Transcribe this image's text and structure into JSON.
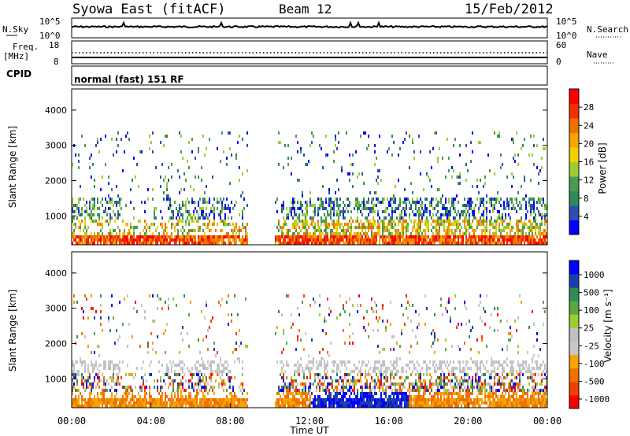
{
  "header": {
    "station": "Syowa East (fitACF)",
    "beam": "Beam 12",
    "date": "15/Feb/2012"
  },
  "noise_panel": {
    "left_label": "N.Sky",
    "right_label": "N.Search",
    "ticks_left": [
      "10^5",
      "10^0"
    ],
    "ticks_right": [
      "10^5",
      "10^0"
    ]
  },
  "freq_panel": {
    "left_label_1": "Freq.",
    "left_label_2": "[MHz]",
    "right_label": "Nave",
    "ticks_left": [
      "18",
      "8"
    ],
    "ticks_right": [
      "60",
      "0"
    ]
  },
  "cpid": {
    "label": "CPID",
    "value": "normal (fast) 151 RF"
  },
  "colors": {
    "power_scale": [
      "#0000ff",
      "#2a4fb0",
      "#2e8b57",
      "#4a9a50",
      "#9acd32",
      "#f0d000",
      "#f4a300",
      "#f07000",
      "#f03000",
      "#ff0000"
    ],
    "velocity_scale": [
      "#0000ff",
      "#1a3faa",
      "#2e8b57",
      "#5aa840",
      "#9acd32",
      "#c0c0c0",
      "#c8c8c8",
      "#f4a300",
      "#f07000",
      "#f04000",
      "#ff0000"
    ]
  },
  "chart_data": [
    {
      "type": "heatmap",
      "title": "Power",
      "ylabel": "Slant Range [km]",
      "xlabel": "",
      "y_ticks": [
        "1000",
        "2000",
        "3000",
        "4000"
      ],
      "ylim": [
        180,
        4600
      ],
      "colorbar_label": "Power [dB]",
      "colorbar_ticks": [
        "4",
        "8",
        "12",
        "16",
        "20",
        "24",
        "28"
      ],
      "colorbar_range": [
        0,
        30
      ],
      "grid": false
    },
    {
      "type": "heatmap",
      "title": "Velocity",
      "ylabel": "Slant Range [km]",
      "xlabel": "Time UT",
      "x_ticks": [
        "00:00",
        "04:00",
        "08:00",
        "12:00",
        "16:00",
        "20:00",
        "00:00"
      ],
      "y_ticks": [
        "1000",
        "2000",
        "3000",
        "4000"
      ],
      "ylim": [
        180,
        4600
      ],
      "colorbar_label": "Velocity [m s⁻¹]",
      "colorbar_ticks": [
        "1000",
        "500",
        "100",
        "25",
        "-25",
        "-100",
        "-500",
        "-1000"
      ],
      "grid": false
    }
  ]
}
